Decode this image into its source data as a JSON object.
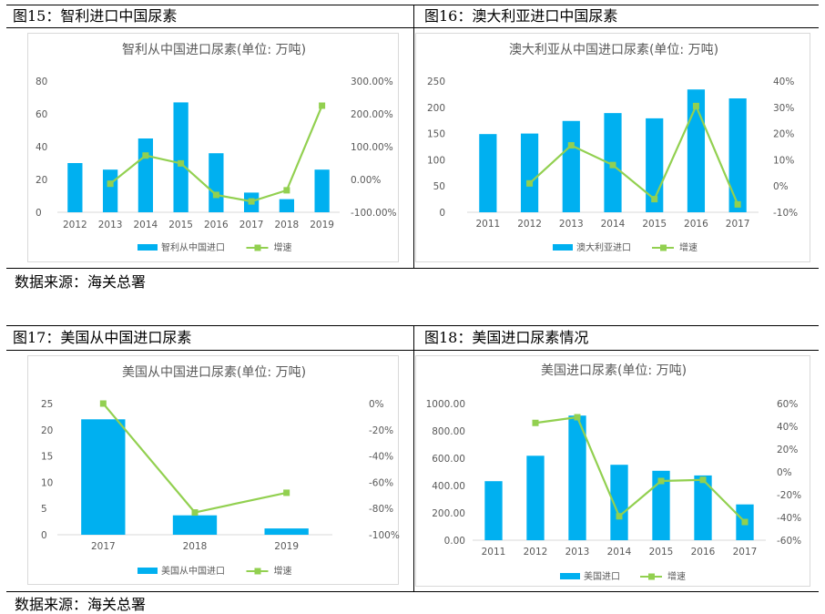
{
  "figures": [
    {
      "label": "图15：智利进口中国尿素",
      "chart": {
        "type": "bar",
        "title": "智利从中国进口尿素(单位: 万吨)",
        "categories": [
          "2012",
          "2013",
          "2014",
          "2015",
          "2016",
          "2017",
          "2018",
          "2019"
        ],
        "series": [
          {
            "name": "智利从中国进口",
            "type": "bar",
            "axis": "left",
            "values": [
              30,
              26,
              45,
              67,
              36,
              12,
              8,
              26
            ]
          },
          {
            "name": "增速",
            "type": "line",
            "axis": "right",
            "values": [
              null,
              -13,
              73,
              49,
              -47,
              -67,
              -33,
              225
            ]
          }
        ],
        "ylim": [
          0,
          80
        ],
        "yticks": [
          "0",
          "20",
          "40",
          "60",
          "80"
        ],
        "y2lim": [
          -100,
          300
        ],
        "y2ticks": [
          "-100.00%",
          "0.00%",
          "100.00%",
          "200.00%",
          "300.00%"
        ],
        "legend_position": "bottom",
        "grid": false
      }
    },
    {
      "label": "图16：澳大利亚进口中国尿素",
      "chart": {
        "type": "bar",
        "title": "澳大利亚从中国进口尿素(单位: 万吨)",
        "categories": [
          "2011",
          "2012",
          "2013",
          "2014",
          "2015",
          "2016",
          "2017"
        ],
        "series": [
          {
            "name": "澳大利亚进口",
            "type": "bar",
            "axis": "left",
            "values": [
              149,
              150,
              174,
              189,
              179,
              234,
              217
            ]
          },
          {
            "name": "增速",
            "type": "line",
            "axis": "right",
            "values": [
              null,
              1,
              15.5,
              8,
              -5,
              30.5,
              -7
            ]
          }
        ],
        "ylim": [
          0,
          250
        ],
        "yticks": [
          "0",
          "50",
          "100",
          "150",
          "200",
          "250"
        ],
        "y2lim": [
          -10,
          40
        ],
        "y2ticks": [
          "-10%",
          "0%",
          "10%",
          "20%",
          "30%",
          "40%"
        ],
        "legend_position": "bottom",
        "grid": false
      }
    },
    {
      "label": "图17：美国从中国进口尿素",
      "chart": {
        "type": "bar",
        "title": "美国从中国进口尿素(单位: 万吨)",
        "categories": [
          "2017",
          "2018",
          "2019"
        ],
        "series": [
          {
            "name": "美国从中国进口",
            "type": "bar",
            "axis": "left",
            "values": [
              22,
              3.7,
              1.2
            ]
          },
          {
            "name": "增速",
            "type": "line",
            "axis": "right",
            "values": [
              0,
              -83,
              -68
            ]
          }
        ],
        "ylim": [
          0,
          25
        ],
        "yticks": [
          "0",
          "5",
          "10",
          "15",
          "20",
          "25"
        ],
        "y2lim": [
          -100,
          0
        ],
        "y2ticks": [
          "-100%",
          "-80%",
          "-60%",
          "-40%",
          "-20%",
          "0%"
        ],
        "legend_position": "bottom",
        "grid": false
      }
    },
    {
      "label": "图18：美国进口尿素情况",
      "chart": {
        "type": "bar",
        "title": "美国进口尿素(单位: 万吨)",
        "categories": [
          "2011",
          "2012",
          "2013",
          "2014",
          "2015",
          "2016",
          "2017"
        ],
        "series": [
          {
            "name": "美国进口",
            "type": "bar",
            "axis": "left",
            "values": [
              432,
              618,
              912,
              552,
              508,
              474,
              262
            ]
          },
          {
            "name": "增速",
            "type": "line",
            "axis": "right",
            "values": [
              null,
              43,
              48,
              -39,
              -8,
              -7,
              -44
            ]
          }
        ],
        "ylim": [
          0,
          1000
        ],
        "yticks": [
          "0.00",
          "200.00",
          "400.00",
          "600.00",
          "800.00",
          "1000.00"
        ],
        "y2lim": [
          -60,
          60
        ],
        "y2ticks": [
          "-60%",
          "-40%",
          "-20%",
          "0%",
          "20%",
          "40%",
          "60%"
        ],
        "legend_position": "bottom",
        "grid": false
      }
    }
  ],
  "sources": [
    "数据来源：海关总署",
    "数据来源：海关总署"
  ],
  "colors": {
    "bar": "#00b0f0",
    "line": "#92d050",
    "text": "#595959",
    "axis": "#d9d9d9"
  }
}
